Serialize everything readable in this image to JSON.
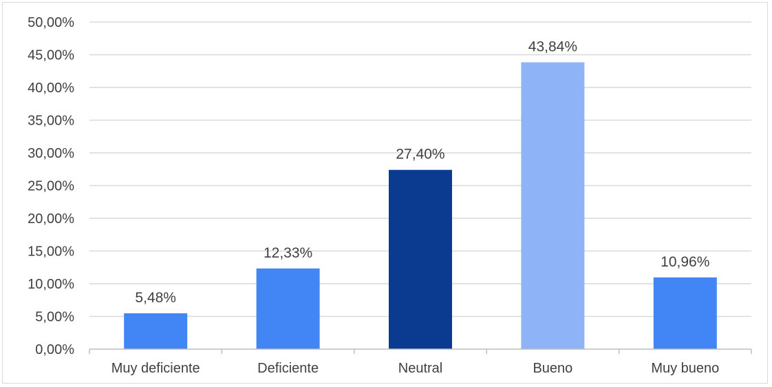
{
  "chart_data": {
    "type": "bar",
    "categories": [
      "Muy deficiente",
      "Deficiente",
      "Neutral",
      "Bueno",
      "Muy bueno"
    ],
    "values": [
      5.48,
      12.33,
      27.4,
      43.84,
      10.96
    ],
    "data_labels": [
      "5,48%",
      "12,33%",
      "27,40%",
      "43,84%",
      "10,96%"
    ],
    "bar_colors": [
      "#4285f4",
      "#4285f4",
      "#0b3a91",
      "#8fb3f7",
      "#4285f4"
    ],
    "y_ticks": [
      0,
      5,
      10,
      15,
      20,
      25,
      30,
      35,
      40,
      45,
      50
    ],
    "y_tick_labels": [
      "0,00%",
      "5,00%",
      "10,00%",
      "15,00%",
      "20,00%",
      "25,00%",
      "30,00%",
      "35,00%",
      "40,00%",
      "45,00%",
      "50,00%"
    ],
    "ylim": [
      0,
      50
    ],
    "grid": true,
    "legend": "none",
    "gridline_color": "#d9d9d9",
    "axis_color": "#bfbfbf",
    "text_color": "#404040"
  }
}
